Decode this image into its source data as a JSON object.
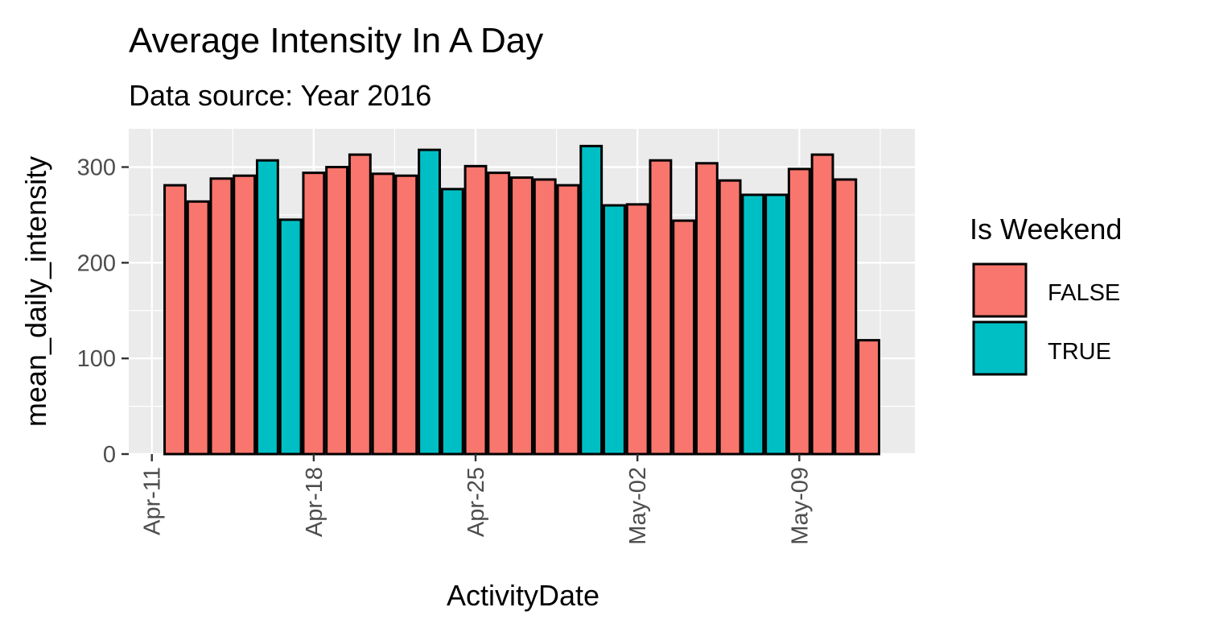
{
  "chart_data": {
    "type": "bar",
    "title": "Average Intensity In A Day",
    "subtitle": "Data source: Year 2016",
    "xlabel": "ActivityDate",
    "ylabel": "mean_daily_intensity",
    "x_tick_labels": [
      {
        "label": "Apr-11",
        "date": "2016-04-11"
      },
      {
        "label": "Apr-18",
        "date": "2016-04-18"
      },
      {
        "label": "Apr-25",
        "date": "2016-04-25"
      },
      {
        "label": "May-02",
        "date": "2016-05-02"
      },
      {
        "label": "May-09",
        "date": "2016-05-09"
      }
    ],
    "y_ticks": [
      0,
      100,
      200,
      300
    ],
    "ylim": [
      0,
      340
    ],
    "xlim": [
      "2016-04-10",
      "2016-05-14"
    ],
    "grid": true,
    "legend": {
      "title": "Is Weekend",
      "placement": "right",
      "entries": [
        {
          "label": "FALSE",
          "color": "#F8766D"
        },
        {
          "label": "TRUE",
          "color": "#00BFC4"
        }
      ]
    },
    "colors": {
      "FALSE": "#F8766D",
      "TRUE": "#00BFC4",
      "panel": "#EBEBEB",
      "grid": "#FFFFFF",
      "outline": "#000000"
    },
    "dates": [
      "2016-04-12",
      "2016-04-13",
      "2016-04-14",
      "2016-04-15",
      "2016-04-16",
      "2016-04-17",
      "2016-04-18",
      "2016-04-19",
      "2016-04-20",
      "2016-04-21",
      "2016-04-22",
      "2016-04-23",
      "2016-04-24",
      "2016-04-25",
      "2016-04-26",
      "2016-04-27",
      "2016-04-28",
      "2016-04-29",
      "2016-04-30",
      "2016-05-01",
      "2016-05-02",
      "2016-05-03",
      "2016-05-04",
      "2016-05-05",
      "2016-05-06",
      "2016-05-07",
      "2016-05-08",
      "2016-05-09",
      "2016-05-10",
      "2016-05-11",
      "2016-05-12"
    ],
    "values": [
      281,
      264,
      288,
      291,
      307,
      245,
      294,
      300,
      313,
      293,
      291,
      318,
      277,
      301,
      294,
      289,
      287,
      281,
      322,
      260,
      261,
      307,
      244,
      304,
      286,
      271,
      271,
      298,
      313,
      287,
      119
    ],
    "is_weekend": [
      "FALSE",
      "FALSE",
      "FALSE",
      "FALSE",
      "TRUE",
      "TRUE",
      "FALSE",
      "FALSE",
      "FALSE",
      "FALSE",
      "FALSE",
      "TRUE",
      "TRUE",
      "FALSE",
      "FALSE",
      "FALSE",
      "FALSE",
      "FALSE",
      "TRUE",
      "TRUE",
      "FALSE",
      "FALSE",
      "FALSE",
      "FALSE",
      "FALSE",
      "TRUE",
      "TRUE",
      "FALSE",
      "FALSE",
      "FALSE",
      "FALSE"
    ]
  }
}
